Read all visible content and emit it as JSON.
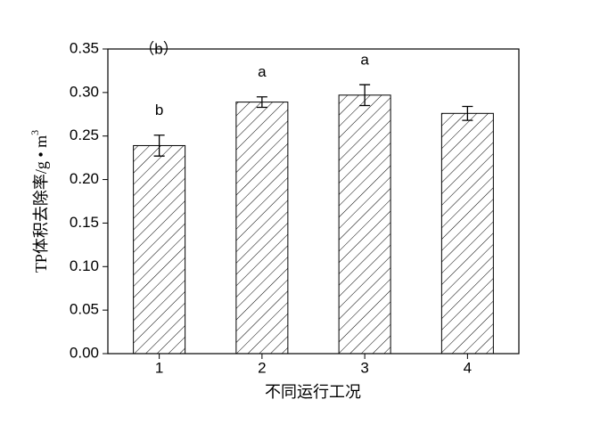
{
  "chart_data": {
    "type": "bar",
    "panel_label": "（b）",
    "x_label": "不同运行工况",
    "y_label": "TP体积去除率/g • m",
    "y_label_sup": "3",
    "categories": [
      "1",
      "2",
      "3",
      "4"
    ],
    "series": [
      {
        "values": [
          0.239,
          0.289,
          0.297,
          0.276
        ],
        "errors": [
          0.012,
          0.006,
          0.012,
          0.008
        ],
        "color": "#000000"
      }
    ],
    "annotations": [
      "b",
      "a",
      "a",
      null
    ],
    "ylim": [
      0,
      0.35
    ],
    "yticks": [
      {
        "value": 0,
        "label": "0.00"
      },
      {
        "value": 0.05,
        "label": "0.05"
      },
      {
        "value": 0.1,
        "label": "0.10"
      },
      {
        "value": 0.15,
        "label": "0.15"
      },
      {
        "value": 0.2,
        "label": "0.20"
      },
      {
        "value": 0.25,
        "label": "0.25"
      },
      {
        "value": 0.3,
        "label": "0.30"
      },
      {
        "value": 0.35,
        "label": "0.35"
      }
    ]
  }
}
